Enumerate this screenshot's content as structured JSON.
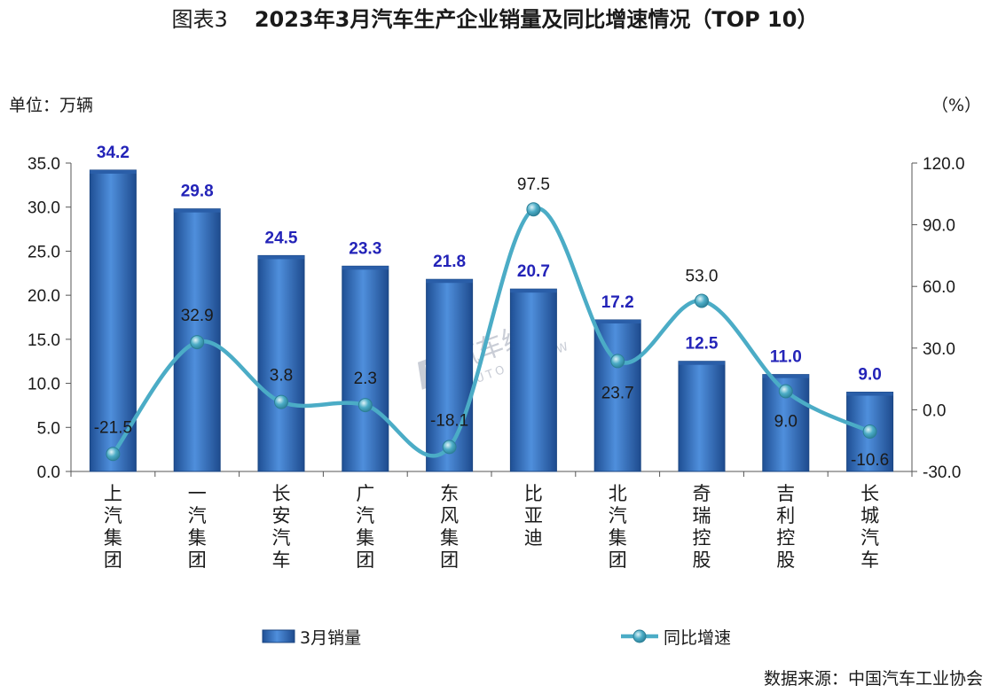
{
  "header": {
    "figure_label": "图表3",
    "title": "2023年3月汽车生产企业销量及同比增速情况（TOP 10）"
  },
  "units": {
    "left": "单位：万辆",
    "right": "（%）"
  },
  "source": "数据来源：中国汽车工业协会",
  "watermark": {
    "text": "汽车纵横",
    "subtext": "AUTO REVIEW"
  },
  "colors": {
    "bar": "#3c78c8",
    "bar_dark": "#1f4f94",
    "line": "#4bacc6",
    "bar_label": "#2323b8"
  },
  "chart_data": {
    "type": "bar",
    "categories": [
      "上汽集团",
      "一汽集团",
      "长安汽车",
      "广汽集团",
      "东风集团",
      "比亚迪",
      "北汽集团",
      "奇瑞控股",
      "吉利控股",
      "长城汽车"
    ],
    "series": [
      {
        "name": "3月销量",
        "type": "bar",
        "axis": "left",
        "values": [
          34.2,
          29.8,
          24.5,
          23.3,
          21.8,
          20.7,
          17.2,
          12.5,
          11.0,
          9.0
        ],
        "labels": [
          "34.2",
          "29.8",
          "24.5",
          "23.3",
          "21.8",
          "20.7",
          "17.2",
          "12.5",
          "11.0",
          "9.0"
        ]
      },
      {
        "name": "同比增速",
        "type": "line",
        "axis": "right",
        "smooth": true,
        "values": [
          -21.5,
          32.9,
          3.8,
          2.3,
          -18.1,
          97.5,
          23.7,
          53.0,
          9.0,
          -10.6
        ],
        "labels": [
          "-21.5",
          "32.9",
          "3.8",
          "2.3",
          "-18.1",
          "97.5",
          "23.7",
          "53.0",
          "9.0",
          "-10.6"
        ]
      }
    ],
    "y_left": {
      "ylim": [
        0,
        35
      ],
      "ticks": [
        "0.0",
        "5.0",
        "10.0",
        "15.0",
        "20.0",
        "25.0",
        "30.0",
        "35.0"
      ]
    },
    "y_right": {
      "ylim": [
        -30,
        120
      ],
      "ticks": [
        "-30.0",
        "0.0",
        "30.0",
        "60.0",
        "90.0",
        "120.0"
      ]
    },
    "grid": false,
    "legend": "bottom"
  }
}
